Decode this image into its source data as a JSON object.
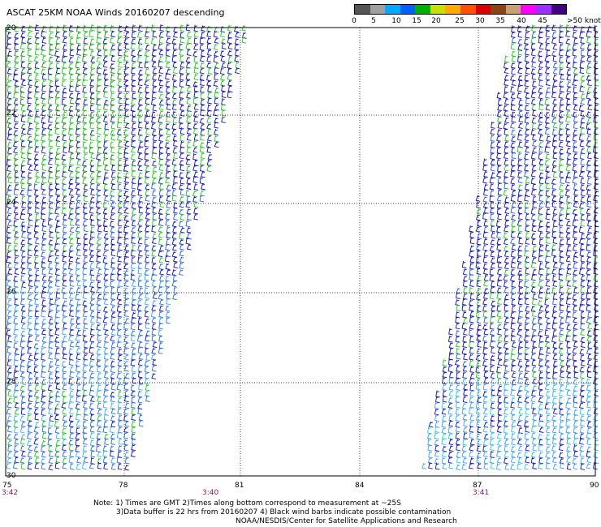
{
  "title": "ASCAT 25KM NOAA Winds 20160207 descending",
  "legend": {
    "colors": [
      "#555555",
      "#a0a0a0",
      "#00aaff",
      "#0060ff",
      "#00b000",
      "#c8e000",
      "#ffaa00",
      "#ff5000",
      "#d80000",
      "#8b4513",
      "#c8a078",
      "#ff00ff",
      "#9b30ff",
      "#400080"
    ],
    "ticks": [
      "0",
      "5",
      "10",
      "15",
      "20",
      "25",
      "30",
      "35",
      "40",
      "45"
    ],
    "overflow": ">50",
    "unit": "knots"
  },
  "map": {
    "lat_labels": [
      "20",
      "22",
      "24",
      "26",
      "28",
      "30"
    ],
    "lon_labels": [
      "75",
      "78",
      "81",
      "84",
      "87",
      "90"
    ],
    "time_labels": [
      "3:42",
      "3:40",
      "3:41"
    ]
  },
  "notes": {
    "line1": "Note: 1) Times are GMT 2)Times along bottom correspond to measurement at ~25S",
    "line2": "3)Data buffer is 22 hrs from 20160207 4) Black wind barbs indicate possible contamination",
    "line3": "NOAA/NESDIS/Center for Satellite Applications and Research"
  }
}
